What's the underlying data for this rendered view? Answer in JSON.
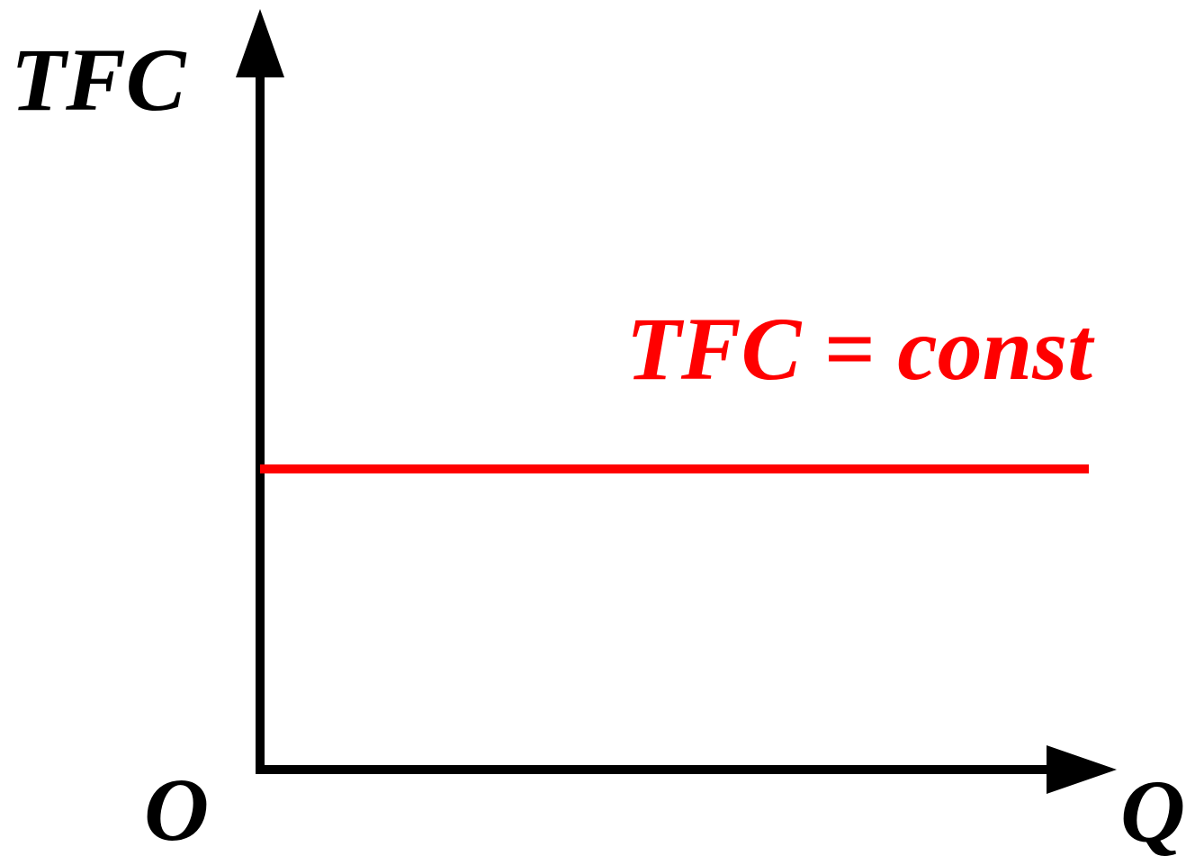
{
  "chart_data": {
    "type": "line",
    "title": "",
    "ylabel": "TFC",
    "xlabel": "Q",
    "origin_label": "O",
    "series": [
      {
        "name": "TFC = const",
        "x": [
          0,
          1
        ],
        "y": [
          1,
          1
        ],
        "color": "#ff0000"
      }
    ],
    "xlim": [
      0,
      1.03
    ],
    "ylim": [
      0,
      1.73
    ],
    "grid": false,
    "legend": "none"
  },
  "colors": {
    "axis": "#000000",
    "curve": "#ff0000"
  }
}
